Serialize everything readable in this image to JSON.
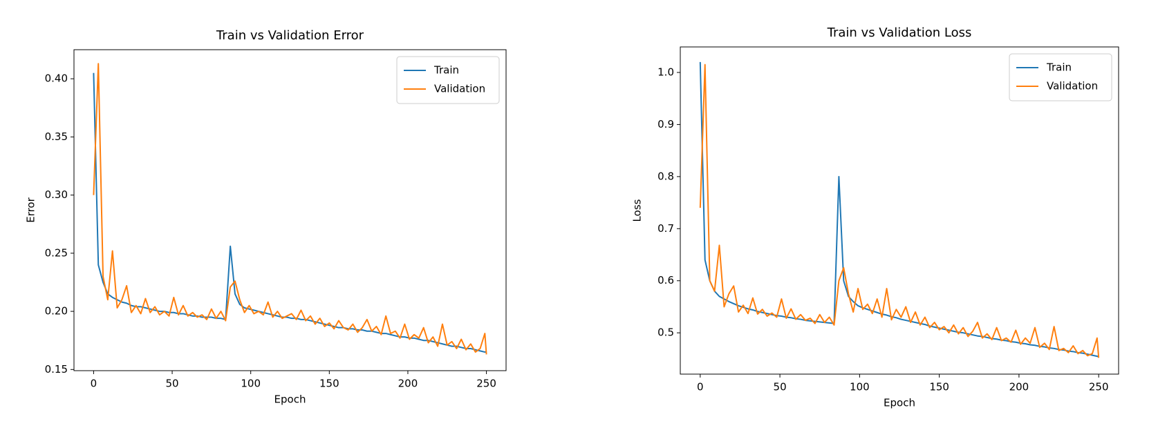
{
  "chart_data": [
    {
      "type": "line",
      "title": "Train vs Validation Error",
      "x_label": "Epoch",
      "y_label": "Error",
      "x": [
        0,
        3,
        6,
        9,
        12,
        15,
        18,
        21,
        24,
        27,
        30,
        33,
        36,
        39,
        42,
        45,
        48,
        51,
        54,
        57,
        60,
        63,
        66,
        69,
        72,
        75,
        78,
        81,
        84,
        87,
        90,
        93,
        96,
        99,
        102,
        105,
        108,
        111,
        114,
        117,
        120,
        123,
        126,
        129,
        132,
        135,
        138,
        141,
        144,
        147,
        150,
        153,
        156,
        159,
        162,
        165,
        168,
        171,
        174,
        177,
        180,
        183,
        186,
        189,
        192,
        195,
        198,
        201,
        204,
        207,
        210,
        213,
        216,
        219,
        222,
        225,
        228,
        231,
        234,
        237,
        240,
        243,
        246,
        249,
        250
      ],
      "series": [
        {
          "name": "Train",
          "color": "#1f77b4",
          "values": [
            0.405,
            0.24,
            0.225,
            0.215,
            0.212,
            0.21,
            0.208,
            0.207,
            0.205,
            0.204,
            0.204,
            0.203,
            0.202,
            0.201,
            0.2,
            0.2,
            0.199,
            0.199,
            0.198,
            0.198,
            0.197,
            0.196,
            0.196,
            0.195,
            0.195,
            0.195,
            0.194,
            0.194,
            0.193,
            0.256,
            0.215,
            0.206,
            0.203,
            0.202,
            0.201,
            0.2,
            0.199,
            0.198,
            0.197,
            0.196,
            0.195,
            0.195,
            0.194,
            0.194,
            0.193,
            0.193,
            0.192,
            0.191,
            0.19,
            0.189,
            0.188,
            0.187,
            0.186,
            0.186,
            0.185,
            0.185,
            0.184,
            0.184,
            0.183,
            0.183,
            0.182,
            0.181,
            0.181,
            0.18,
            0.179,
            0.178,
            0.178,
            0.177,
            0.177,
            0.176,
            0.175,
            0.175,
            0.174,
            0.173,
            0.172,
            0.171,
            0.17,
            0.17,
            0.169,
            0.168,
            0.168,
            0.167,
            0.166,
            0.165,
            0.165
          ]
        },
        {
          "name": "Validation",
          "color": "#ff7f0e",
          "values": [
            0.3,
            0.413,
            0.23,
            0.21,
            0.252,
            0.203,
            0.21,
            0.222,
            0.199,
            0.205,
            0.198,
            0.211,
            0.199,
            0.204,
            0.197,
            0.2,
            0.196,
            0.212,
            0.197,
            0.205,
            0.196,
            0.199,
            0.195,
            0.197,
            0.193,
            0.202,
            0.194,
            0.2,
            0.192,
            0.221,
            0.226,
            0.21,
            0.199,
            0.205,
            0.198,
            0.2,
            0.197,
            0.208,
            0.195,
            0.2,
            0.194,
            0.196,
            0.198,
            0.193,
            0.201,
            0.192,
            0.196,
            0.189,
            0.194,
            0.187,
            0.19,
            0.185,
            0.192,
            0.186,
            0.184,
            0.189,
            0.182,
            0.186,
            0.193,
            0.183,
            0.187,
            0.18,
            0.196,
            0.181,
            0.183,
            0.177,
            0.189,
            0.176,
            0.18,
            0.177,
            0.186,
            0.173,
            0.178,
            0.17,
            0.189,
            0.171,
            0.174,
            0.168,
            0.176,
            0.167,
            0.172,
            0.165,
            0.168,
            0.181,
            0.163
          ]
        }
      ],
      "xlim": [
        -12.5,
        262.5
      ],
      "xticks": [
        0,
        50,
        100,
        150,
        200,
        250
      ],
      "ylim": [
        0.149,
        0.425
      ],
      "yticks": [
        0.15,
        {
          "value": 0.2,
          "label": "0.20"
        },
        0.25,
        {
          "value": 0.3,
          "label": "0.30"
        },
        0.35,
        {
          "value": 0.4,
          "label": "0.40"
        }
      ],
      "legend": "upper right"
    },
    {
      "type": "line",
      "title": "Train vs Validation Loss",
      "x_label": "Epoch",
      "y_label": "Loss",
      "x": [
        0,
        3,
        6,
        9,
        12,
        15,
        18,
        21,
        24,
        27,
        30,
        33,
        36,
        39,
        42,
        45,
        48,
        51,
        54,
        57,
        60,
        63,
        66,
        69,
        72,
        75,
        78,
        81,
        84,
        87,
        90,
        93,
        96,
        99,
        102,
        105,
        108,
        111,
        114,
        117,
        120,
        123,
        126,
        129,
        132,
        135,
        138,
        141,
        144,
        147,
        150,
        153,
        156,
        159,
        162,
        165,
        168,
        171,
        174,
        177,
        180,
        183,
        186,
        189,
        192,
        195,
        198,
        201,
        204,
        207,
        210,
        213,
        216,
        219,
        222,
        225,
        228,
        231,
        234,
        237,
        240,
        243,
        246,
        249,
        250
      ],
      "series": [
        {
          "name": "Train",
          "color": "#1f77b4",
          "values": [
            1.02,
            0.64,
            0.6,
            0.58,
            0.57,
            0.565,
            0.56,
            0.556,
            0.552,
            0.549,
            0.546,
            0.544,
            0.541,
            0.539,
            0.537,
            0.535,
            0.533,
            0.532,
            0.53,
            0.529,
            0.527,
            0.526,
            0.524,
            0.523,
            0.522,
            0.521,
            0.52,
            0.519,
            0.518,
            0.8,
            0.6,
            0.57,
            0.56,
            0.552,
            0.548,
            0.545,
            0.542,
            0.539,
            0.536,
            0.534,
            0.531,
            0.529,
            0.526,
            0.524,
            0.522,
            0.52,
            0.518,
            0.516,
            0.513,
            0.511,
            0.509,
            0.507,
            0.505,
            0.503,
            0.501,
            0.5,
            0.498,
            0.496,
            0.494,
            0.493,
            0.491,
            0.489,
            0.488,
            0.486,
            0.485,
            0.483,
            0.482,
            0.48,
            0.479,
            0.477,
            0.476,
            0.474,
            0.473,
            0.471,
            0.47,
            0.468,
            0.467,
            0.465,
            0.464,
            0.462,
            0.461,
            0.459,
            0.457,
            0.455,
            0.454
          ]
        },
        {
          "name": "Validation",
          "color": "#ff7f0e",
          "values": [
            0.74,
            1.015,
            0.6,
            0.58,
            0.668,
            0.55,
            0.575,
            0.59,
            0.54,
            0.553,
            0.537,
            0.567,
            0.536,
            0.545,
            0.532,
            0.538,
            0.53,
            0.565,
            0.528,
            0.546,
            0.526,
            0.535,
            0.524,
            0.528,
            0.518,
            0.535,
            0.52,
            0.53,
            0.515,
            0.6,
            0.625,
            0.575,
            0.54,
            0.585,
            0.545,
            0.555,
            0.537,
            0.565,
            0.53,
            0.585,
            0.525,
            0.545,
            0.53,
            0.55,
            0.52,
            0.54,
            0.515,
            0.53,
            0.51,
            0.52,
            0.506,
            0.512,
            0.5,
            0.515,
            0.498,
            0.51,
            0.493,
            0.503,
            0.52,
            0.49,
            0.498,
            0.487,
            0.51,
            0.485,
            0.49,
            0.482,
            0.505,
            0.478,
            0.49,
            0.48,
            0.51,
            0.472,
            0.48,
            0.468,
            0.512,
            0.466,
            0.47,
            0.462,
            0.475,
            0.46,
            0.466,
            0.456,
            0.46,
            0.49,
            0.452
          ]
        }
      ],
      "xlim": [
        -12.5,
        262.5
      ],
      "xticks": [
        0,
        50,
        100,
        150,
        200,
        250
      ],
      "ylim": [
        0.4207,
        1.049
      ],
      "yticks": [
        0.5,
        0.6,
        0.7,
        0.8,
        0.9,
        {
          "value": 1.0,
          "label": "1.0"
        }
      ],
      "legend": "upper right"
    }
  ]
}
